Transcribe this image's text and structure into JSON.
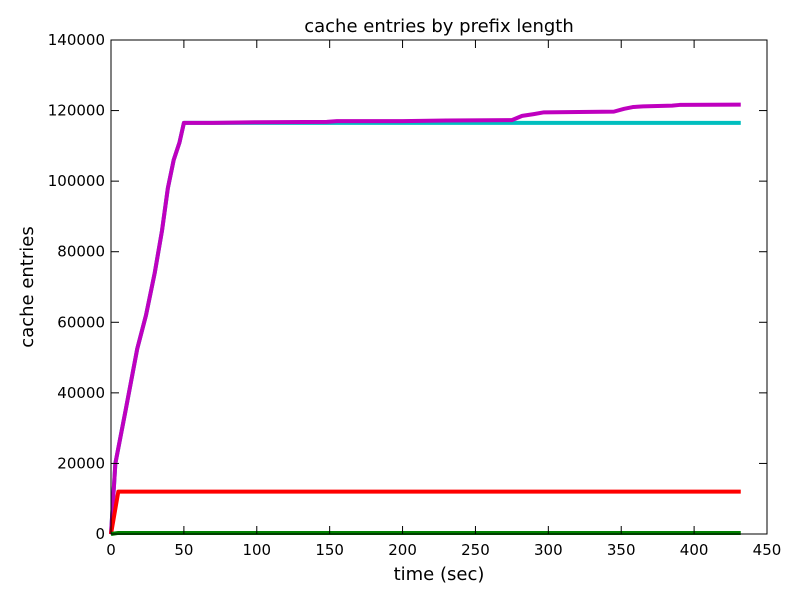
{
  "chart_data": {
    "type": "line",
    "title": "cache entries by prefix length",
    "xlabel": "time (sec)",
    "ylabel": "cache entries",
    "xlim": [
      0,
      450
    ],
    "ylim": [
      0,
      140000
    ],
    "xticks": [
      0,
      50,
      100,
      150,
      200,
      250,
      300,
      350,
      400,
      450
    ],
    "yticks": [
      0,
      20000,
      40000,
      60000,
      80000,
      100000,
      120000,
      140000
    ],
    "grid": false,
    "series": [
      {
        "color": "#00bfbf",
        "points": [
          [
            0,
            0
          ],
          [
            3,
            20000
          ],
          [
            10,
            35000
          ],
          [
            18,
            52500
          ],
          [
            24,
            62000
          ],
          [
            30,
            74000
          ],
          [
            35,
            86000
          ],
          [
            39,
            98000
          ],
          [
            43,
            106000
          ],
          [
            47,
            111000
          ],
          [
            50,
            116500
          ],
          [
            60,
            116500
          ],
          [
            100,
            116500
          ],
          [
            150,
            116500
          ],
          [
            200,
            116500
          ],
          [
            250,
            116500
          ],
          [
            300,
            116500
          ],
          [
            350,
            116500
          ],
          [
            400,
            116500
          ],
          [
            432,
            116500
          ]
        ]
      },
      {
        "color": "#bf00bf",
        "points": [
          [
            0,
            0
          ],
          [
            3,
            20000
          ],
          [
            10,
            35000
          ],
          [
            18,
            52500
          ],
          [
            24,
            62000
          ],
          [
            30,
            74000
          ],
          [
            35,
            86000
          ],
          [
            39,
            98000
          ],
          [
            43,
            106000
          ],
          [
            47,
            111000
          ],
          [
            50,
            116500
          ],
          [
            70,
            116500
          ],
          [
            100,
            116700
          ],
          [
            148,
            116800
          ],
          [
            155,
            117000
          ],
          [
            200,
            117000
          ],
          [
            230,
            117200
          ],
          [
            275,
            117300
          ],
          [
            282,
            118500
          ],
          [
            290,
            119000
          ],
          [
            297,
            119500
          ],
          [
            345,
            119700
          ],
          [
            352,
            120500
          ],
          [
            358,
            121000
          ],
          [
            365,
            121200
          ],
          [
            385,
            121400
          ],
          [
            390,
            121600
          ],
          [
            432,
            121700
          ]
        ]
      },
      {
        "color": "#ff0000",
        "points": [
          [
            0,
            0
          ],
          [
            5,
            12000
          ],
          [
            50,
            12000
          ],
          [
            100,
            12000
          ],
          [
            200,
            12000
          ],
          [
            300,
            12000
          ],
          [
            400,
            12000
          ],
          [
            432,
            12000
          ]
        ]
      },
      {
        "color": "#008000",
        "points": [
          [
            0,
            0
          ],
          [
            5,
            300
          ],
          [
            100,
            300
          ],
          [
            200,
            300
          ],
          [
            300,
            300
          ],
          [
            400,
            300
          ],
          [
            432,
            300
          ]
        ]
      }
    ]
  }
}
